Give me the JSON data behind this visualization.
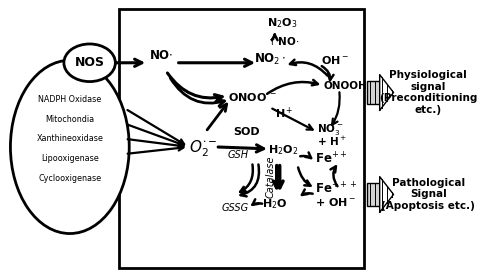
{
  "fig_width": 5.0,
  "fig_height": 2.77,
  "dpi": 100,
  "bg_color": "#ffffff",
  "NOS_label": "NOS",
  "ellipse_sources": [
    "NADPH Oxidase",
    "Mitochondia",
    "Xanthineoxidase",
    "Lipooxigenase",
    "Cyclooxigenase"
  ],
  "phys_text": "Physiological\nsignal\n(Preconditioning\netc.)",
  "path_text": "Pathological\nSignal\n(Apoptosis etc.)"
}
